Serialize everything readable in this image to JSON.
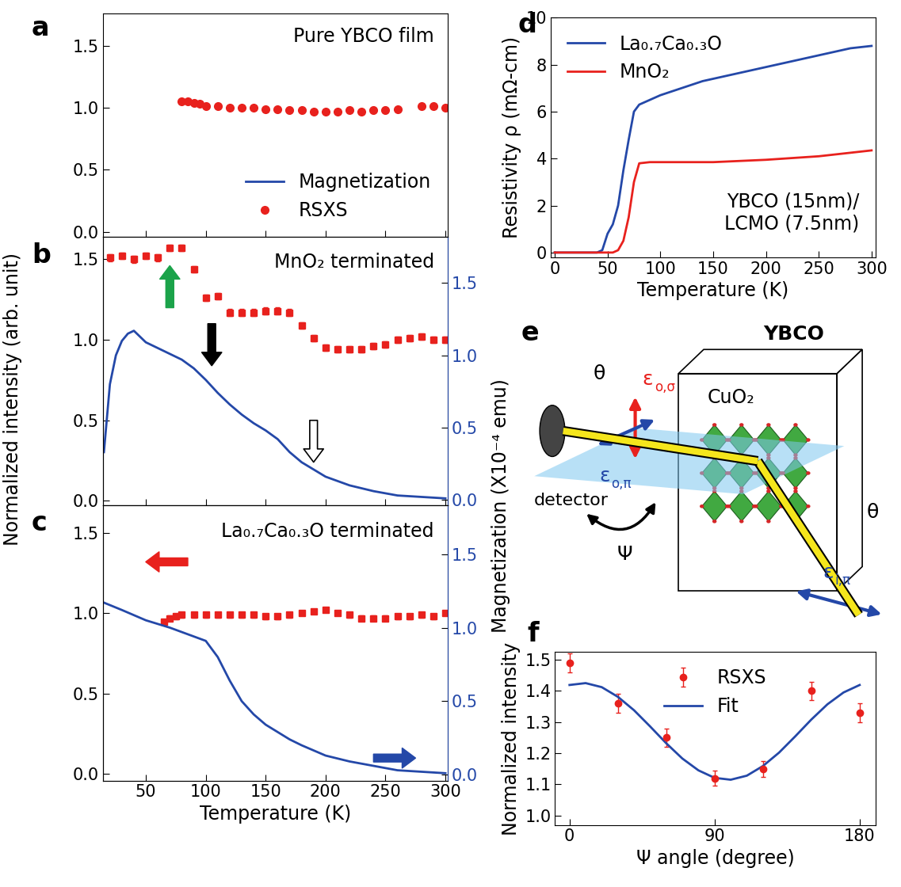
{
  "chart_data": [
    {
      "label": "a",
      "type": "scatter",
      "annotation": "Pure YBCO film",
      "xlim": [
        14,
        302
      ],
      "xticks": [
        50,
        100,
        150,
        200,
        250,
        300
      ],
      "ylim": [
        -0.04,
        1.76
      ],
      "yticks": [
        0.0,
        0.5,
        1.0,
        1.5
      ],
      "tick_labels": "y",
      "legend": "lower right",
      "series": [
        {
          "name": "Magnetization",
          "type": "line",
          "color": "#2448a8",
          "x": [],
          "values": []
        },
        {
          "name": "RSXS",
          "type": "scatter",
          "color": "#e8211d",
          "marker": "circle",
          "x": [
            80,
            85,
            90,
            95,
            100,
            110,
            120,
            130,
            140,
            150,
            160,
            170,
            180,
            190,
            200,
            210,
            220,
            230,
            240,
            250,
            260,
            280,
            290,
            300
          ],
          "values": [
            1.05,
            1.05,
            1.04,
            1.03,
            1.01,
            1.01,
            1.0,
            1.0,
            1.0,
            0.99,
            0.99,
            0.98,
            0.98,
            0.97,
            0.97,
            0.97,
            0.98,
            0.97,
            0.98,
            0.98,
            0.99,
            1.01,
            1.01,
            1.0
          ]
        }
      ]
    },
    {
      "label": "b",
      "type": "scatter",
      "annotation": "MnO₂ terminated",
      "ylabel": "Normalized intensity (arb. unit)",
      "y2label": "Magnetization (X10⁻⁴ emu)",
      "xlim": [
        14,
        302
      ],
      "xticks": [
        50,
        100,
        150,
        200,
        250,
        300
      ],
      "ylim": [
        -0.03,
        1.64
      ],
      "yticks": [
        0.0,
        0.5,
        1.0,
        1.5
      ],
      "y2lim": [
        -0.04,
        1.82
      ],
      "y2ticks": [
        0.0,
        0.5,
        1.0,
        1.5
      ],
      "tick_labels": "y",
      "arrows": [
        {
          "x": 70,
          "y": 1.46,
          "color": "#1ba34a",
          "direction": "up"
        },
        {
          "x": 105,
          "y": 0.84,
          "color": "#000000",
          "direction": "down"
        },
        {
          "x": 190,
          "y": 0.24,
          "color": "#ffffff",
          "direction": "down"
        }
      ],
      "series": [
        {
          "name": "RSXS",
          "type": "scatter",
          "color": "#e8211d",
          "marker": "square",
          "x": [
            20,
            30,
            40,
            50,
            60,
            70,
            80,
            90,
            100,
            110,
            120,
            130,
            140,
            150,
            160,
            170,
            180,
            190,
            200,
            210,
            220,
            230,
            240,
            250,
            260,
            270,
            280,
            290,
            300
          ],
          "values": [
            1.51,
            1.52,
            1.5,
            1.52,
            1.51,
            1.57,
            1.57,
            1.44,
            1.26,
            1.27,
            1.17,
            1.17,
            1.17,
            1.18,
            1.18,
            1.17,
            1.09,
            1.01,
            0.95,
            0.94,
            0.94,
            0.94,
            0.96,
            0.97,
            1.0,
            1.01,
            1.02,
            1.0,
            1.0
          ],
          "errors": [
            0.02,
            0.02,
            0.02,
            0.02,
            0.02,
            0.02,
            0.02,
            0.02,
            0.02,
            0.02,
            0.02,
            0.02,
            0.02,
            0.02,
            0.02,
            0.02,
            0.02,
            0.02,
            0.02,
            0.02,
            0.02,
            0.02,
            0.02,
            0.02,
            0.02,
            0.02,
            0.02,
            0.02,
            0.02
          ]
        },
        {
          "name": "Magnetization",
          "type": "line",
          "color": "#2448a8",
          "axis": "y2",
          "x": [
            15,
            20,
            25,
            30,
            35,
            40,
            45,
            50,
            60,
            70,
            80,
            90,
            100,
            110,
            120,
            130,
            140,
            150,
            160,
            170,
            180,
            190,
            200,
            220,
            240,
            260,
            280,
            300
          ],
          "values": [
            0.33,
            0.8,
            1.0,
            1.1,
            1.15,
            1.17,
            1.13,
            1.09,
            1.05,
            1.01,
            0.97,
            0.91,
            0.83,
            0.74,
            0.66,
            0.59,
            0.53,
            0.48,
            0.42,
            0.33,
            0.26,
            0.21,
            0.16,
            0.1,
            0.06,
            0.03,
            0.02,
            0.01
          ]
        }
      ]
    },
    {
      "label": "c",
      "type": "scatter",
      "annotation": "La₀.₇Ca₀.₃O terminated",
      "xlabel": "Temperature (K)",
      "xlim": [
        14,
        302
      ],
      "xticks": [
        50,
        100,
        150,
        200,
        250,
        300
      ],
      "ylim": [
        -0.04,
        1.67
      ],
      "yticks": [
        0.0,
        0.5,
        1.0,
        1.5
      ],
      "y2lim": [
        -0.04,
        1.83
      ],
      "y2ticks": [
        0.0,
        0.5,
        1.0,
        1.5
      ],
      "arrows": [
        {
          "x": 50,
          "y": 1.32,
          "color": "#e8211d",
          "direction": "left"
        },
        {
          "x": 275,
          "y": 0.1,
          "color": "#2448a8",
          "direction": "right"
        }
      ],
      "series": [
        {
          "name": "RSXS",
          "type": "scatter",
          "color": "#e8211d",
          "marker": "square",
          "x": [
            65,
            70,
            75,
            80,
            90,
            100,
            110,
            120,
            130,
            140,
            150,
            160,
            170,
            180,
            190,
            200,
            210,
            220,
            230,
            240,
            250,
            260,
            270,
            280,
            290,
            300
          ],
          "values": [
            0.95,
            0.97,
            0.98,
            0.99,
            0.99,
            0.99,
            0.99,
            0.99,
            0.99,
            0.99,
            0.98,
            0.98,
            0.99,
            1.0,
            1.01,
            1.02,
            1.0,
            0.99,
            0.97,
            0.97,
            0.97,
            0.98,
            0.98,
            0.99,
            0.98,
            1.0
          ],
          "errors": [
            0.015,
            0.015,
            0.015,
            0.015,
            0.015,
            0.015,
            0.015,
            0.015,
            0.015,
            0.015,
            0.015,
            0.015,
            0.015,
            0.015,
            0.015,
            0.015,
            0.015,
            0.015,
            0.015,
            0.015,
            0.015,
            0.015,
            0.015,
            0.015,
            0.015,
            0.015
          ]
        },
        {
          "name": "Magnetization",
          "type": "line",
          "color": "#2448a8",
          "axis": "y2",
          "x": [
            15,
            30,
            50,
            70,
            90,
            100,
            110,
            120,
            130,
            140,
            150,
            160,
            170,
            180,
            200,
            220,
            240,
            260,
            280,
            300
          ],
          "values": [
            1.17,
            1.12,
            1.05,
            1.0,
            0.94,
            0.91,
            0.8,
            0.64,
            0.5,
            0.41,
            0.34,
            0.29,
            0.24,
            0.2,
            0.13,
            0.09,
            0.06,
            0.03,
            0.02,
            0.01
          ]
        }
      ]
    },
    {
      "label": "d",
      "type": "line",
      "annotation": "YBCO (15nm)/\nLCMO (7.5nm)",
      "xlabel": "Temperature (K)",
      "ylabel": "Resistivity ρ (mΩ-cm)",
      "xlim": [
        -4,
        304
      ],
      "xticks": [
        0,
        50,
        100,
        150,
        200,
        250,
        300
      ],
      "ylim": [
        -0.2,
        10
      ],
      "yticks": [
        0,
        2,
        4,
        6,
        8,
        10
      ],
      "legend": "upper left",
      "series": [
        {
          "name": "La₀.₇Ca₀.₃O",
          "type": "line",
          "color": "#2448a8",
          "x": [
            0,
            40,
            45,
            50,
            55,
            60,
            65,
            70,
            75,
            80,
            90,
            100,
            120,
            140,
            160,
            180,
            200,
            220,
            240,
            260,
            280,
            300
          ],
          "values": [
            0,
            0,
            0.1,
            0.8,
            1.2,
            2.0,
            3.5,
            4.8,
            6.0,
            6.3,
            6.5,
            6.7,
            7.0,
            7.3,
            7.5,
            7.7,
            7.9,
            8.1,
            8.3,
            8.5,
            8.7,
            8.8
          ]
        },
        {
          "name": "MnO₂",
          "type": "line",
          "color": "#e8211d",
          "x": [
            0,
            55,
            60,
            65,
            70,
            75,
            80,
            90,
            100,
            150,
            200,
            250,
            300
          ],
          "values": [
            0,
            0,
            0.1,
            0.5,
            1.5,
            3.0,
            3.8,
            3.85,
            3.85,
            3.85,
            3.95,
            4.1,
            4.35
          ]
        }
      ]
    },
    {
      "label": "f",
      "type": "scatter",
      "xlabel": "Ψ angle (degree)",
      "ylabel": "Normalized intensity",
      "xlim": [
        -9,
        190
      ],
      "xticks": [
        0,
        90,
        180
      ],
      "ylim": [
        0.97,
        1.525
      ],
      "yticks": [
        1.0,
        1.1,
        1.2,
        1.3,
        1.4,
        1.5
      ],
      "legend": "upper center",
      "series": [
        {
          "name": "RSXS",
          "type": "scatter",
          "color": "#e8211d",
          "marker": "circle",
          "x": [
            0,
            30,
            60,
            90,
            120,
            150,
            180
          ],
          "values": [
            1.49,
            1.36,
            1.25,
            1.12,
            1.15,
            1.4,
            1.33
          ],
          "errors": [
            0.03,
            0.03,
            0.03,
            0.025,
            0.025,
            0.03,
            0.03
          ]
        },
        {
          "name": "Fit",
          "type": "line",
          "color": "#2448a8",
          "x": [
            0,
            10,
            20,
            30,
            40,
            50,
            60,
            70,
            80,
            90,
            100,
            110,
            120,
            130,
            140,
            150,
            160,
            170,
            180
          ],
          "values": [
            1.419,
            1.425,
            1.412,
            1.381,
            1.338,
            1.286,
            1.232,
            1.183,
            1.145,
            1.121,
            1.115,
            1.128,
            1.159,
            1.202,
            1.254,
            1.308,
            1.357,
            1.395,
            1.419
          ]
        }
      ]
    }
  ],
  "diagram": {
    "label": "e",
    "sample": "YBCO",
    "plane": "CuO₂",
    "theta_labels": [
      "θ",
      "θ"
    ],
    "eps_out_sigma": {
      "main": "ε",
      "sub": "o,σ"
    },
    "eps_out_pi": {
      "main": "ε",
      "sub": "o,π"
    },
    "eps_in_pi": {
      "main": "ε",
      "sub": "i,π"
    },
    "detector": "detector",
    "rotation": "Ψ"
  }
}
